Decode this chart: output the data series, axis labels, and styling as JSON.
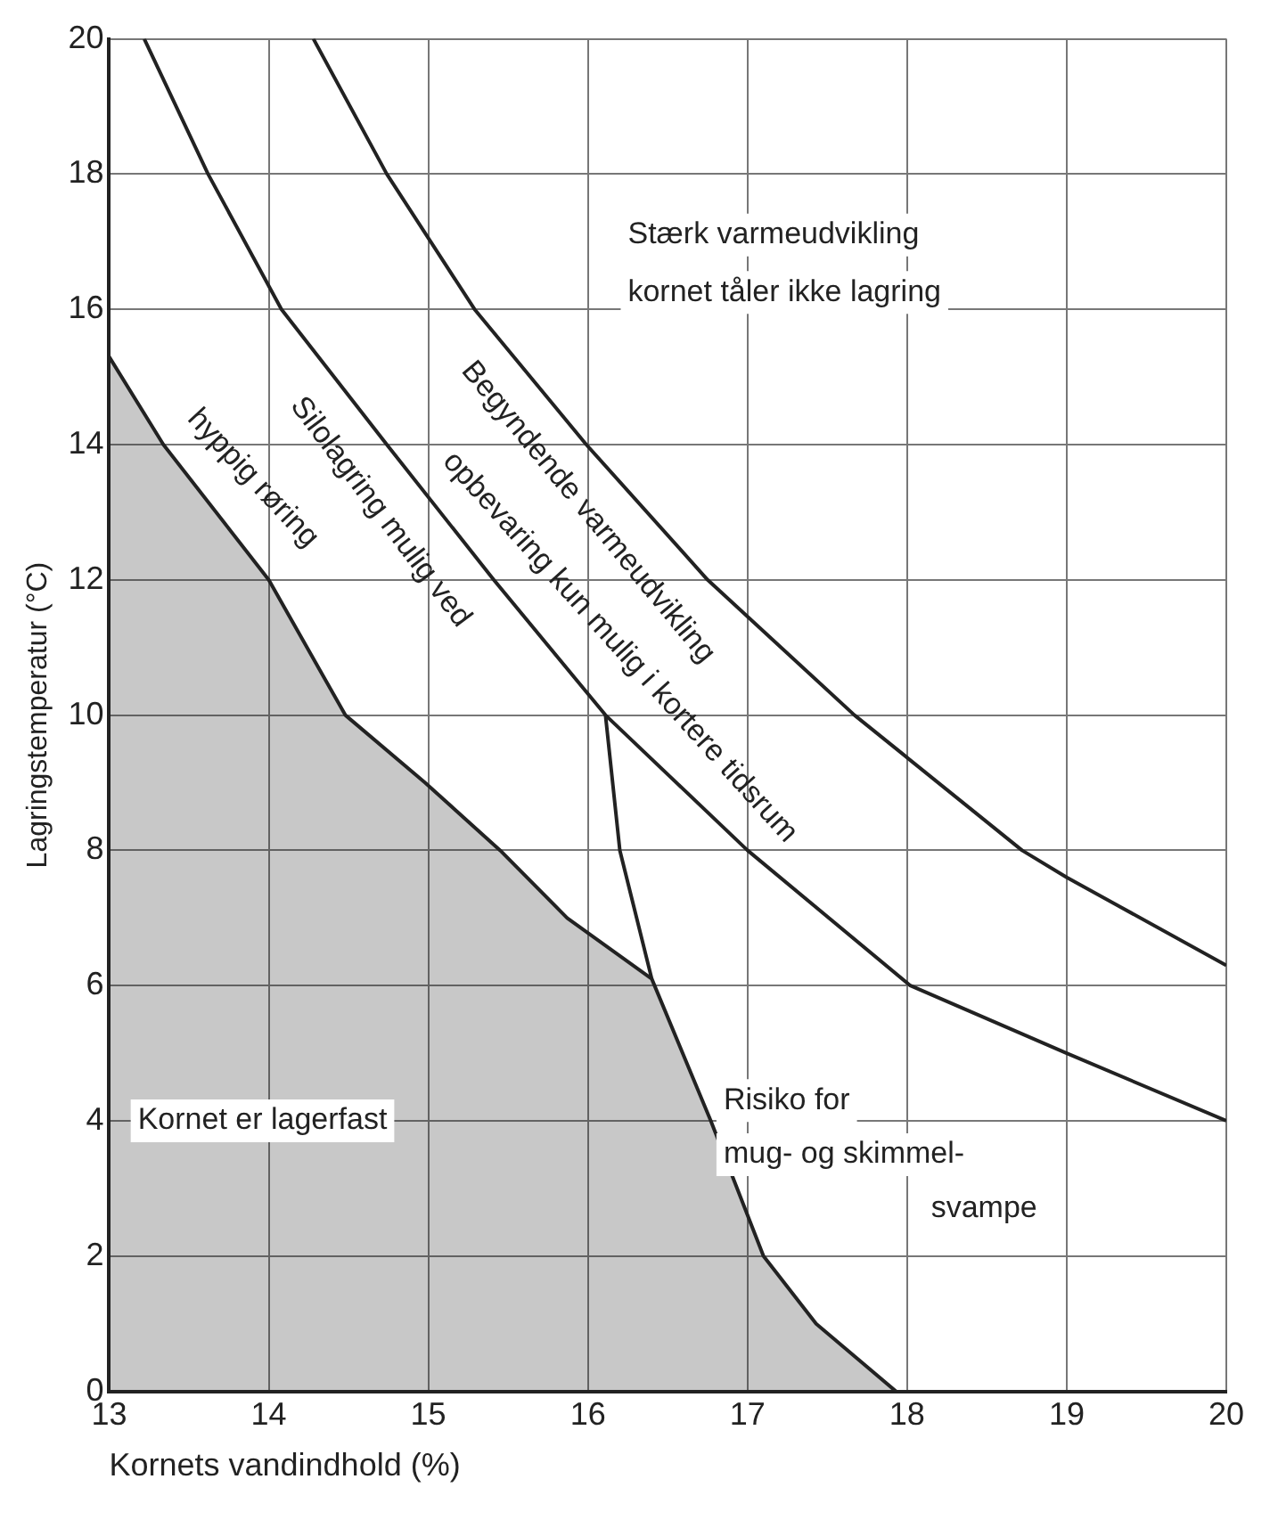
{
  "chart_data": {
    "type": "line",
    "xlabel": "Kornets vandindhold (%)",
    "ylabel": "Lagringstemperatur (°C)",
    "xlim": [
      13,
      20
    ],
    "xticks": [
      13,
      14,
      15,
      16,
      17,
      18,
      19,
      20
    ],
    "ylim": [
      0,
      20
    ],
    "yticks": [
      0,
      2,
      4,
      6,
      8,
      10,
      12,
      14,
      16,
      18,
      20
    ],
    "grid": true,
    "marker": "none",
    "line_style": "solid",
    "series": [
      {
        "type": "area",
        "color": "#222222",
        "x": [
          13,
          13.34,
          14.0,
          14.48,
          14.98,
          15.45,
          15.87,
          16.4,
          16.77,
          17.1,
          17.43,
          17.93
        ],
        "values": [
          15.3,
          14,
          12,
          10,
          9,
          8,
          7,
          6.1,
          4,
          2,
          1,
          0
        ]
      },
      {
        "type": "line",
        "color": "#222222",
        "x": [
          16.11,
          16.2,
          16.4
        ],
        "values": [
          10,
          8,
          6.1
        ]
      },
      {
        "type": "line",
        "color": "#222222",
        "x": [
          13.22,
          13.62,
          14.08,
          14.74,
          15.41,
          16.11,
          17.0,
          18.02,
          19,
          20
        ],
        "values": [
          20,
          18,
          16,
          14,
          12,
          10,
          8,
          6,
          5,
          4
        ]
      },
      {
        "type": "line",
        "color": "#222222",
        "x": [
          14.28,
          14.74,
          15.29,
          15.99,
          16.75,
          17.67,
          18.72,
          19,
          20
        ],
        "values": [
          20,
          18,
          16,
          14,
          12,
          10,
          8,
          7.6,
          6.3
        ]
      }
    ],
    "annotations": [
      "Begyndende varmeudvikling",
      "opbevaring kun mulig i kortere tidsrum",
      "Silolagring mulig ved",
      "hyppig røring",
      "Stærk varmeudvikling",
      "kornet tåler ikke lagring",
      "Kornet er lagerfast",
      "Risiko for",
      "mug- og skimmel-",
      "svampe"
    ]
  }
}
